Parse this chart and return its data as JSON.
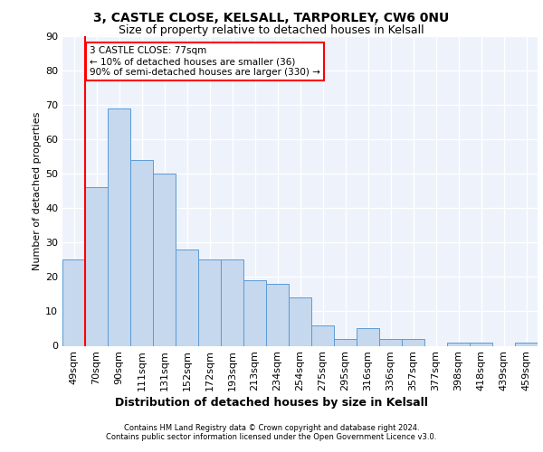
{
  "title1": "3, CASTLE CLOSE, KELSALL, TARPORLEY, CW6 0NU",
  "title2": "Size of property relative to detached houses in Kelsall",
  "xlabel": "Distribution of detached houses by size in Kelsall",
  "ylabel": "Number of detached properties",
  "categories": [
    "49sqm",
    "70sqm",
    "90sqm",
    "111sqm",
    "131sqm",
    "152sqm",
    "172sqm",
    "193sqm",
    "213sqm",
    "234sqm",
    "254sqm",
    "275sqm",
    "295sqm",
    "316sqm",
    "336sqm",
    "357sqm",
    "377sqm",
    "398sqm",
    "418sqm",
    "439sqm",
    "459sqm"
  ],
  "values": [
    25,
    46,
    69,
    54,
    50,
    28,
    25,
    25,
    19,
    18,
    14,
    6,
    2,
    5,
    2,
    2,
    0,
    1,
    1,
    0,
    1
  ],
  "bar_color": "#c5d8ee",
  "bar_edge_color": "#5b9bd5",
  "red_line_index": 1,
  "annotation_line1": "3 CASTLE CLOSE: 77sqm",
  "annotation_line2": "← 10% of detached houses are smaller (36)",
  "annotation_line3": "90% of semi-detached houses are larger (330) →",
  "footer1": "Contains HM Land Registry data © Crown copyright and database right 2024.",
  "footer2": "Contains public sector information licensed under the Open Government Licence v3.0.",
  "bg_color": "#eef3fb",
  "ylim_max": 90,
  "yticks": [
    0,
    10,
    20,
    30,
    40,
    50,
    60,
    70,
    80,
    90
  ],
  "title1_fontsize": 10,
  "title2_fontsize": 9,
  "ylabel_fontsize": 8,
  "xlabel_fontsize": 9,
  "tick_fontsize": 8,
  "annot_fontsize": 7.5,
  "footer_fontsize": 6
}
